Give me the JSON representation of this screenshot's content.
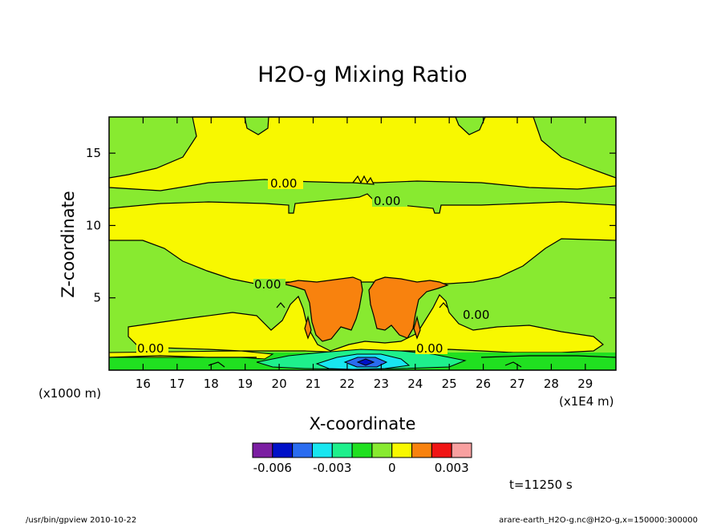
{
  "chart_data": {
    "type": "heatmap",
    "title": "H2O-g Mixing Ratio",
    "xlabel": "X-coordinate",
    "ylabel": "Z-coordinate",
    "x_unit_label": "(x1E4 m)",
    "y_unit_label": "(x1000 m)",
    "x_ticks": [
      "16",
      "17",
      "18",
      "19",
      "20",
      "21",
      "22",
      "23",
      "24",
      "25",
      "26",
      "27",
      "28",
      "29"
    ],
    "y_ticks": [
      "15",
      "10",
      "5"
    ],
    "xlim": [
      15.0,
      29.9
    ],
    "ylim": [
      0.0,
      17.5
    ],
    "contour_labels": [
      "0.00",
      "0.00",
      "0.00",
      "0.00",
      "0.00",
      "0.00"
    ],
    "colorbar": {
      "colors": [
        "#7b1ea2",
        "#0010c8",
        "#2a6cf0",
        "#18e6f0",
        "#1ef08c",
        "#20e020",
        "#88ea30",
        "#f8f800",
        "#f8820e",
        "#f01414",
        "#f8a0a0"
      ],
      "tick_labels": [
        "-0.006",
        "-0.003",
        "0",
        "0.003"
      ]
    },
    "time_label": "t=11250 s"
  },
  "footer": {
    "left": "/usr/bin/gpview   2010-10-22",
    "right": "arare-earth_H2O-g.nc@H2O-g,x=150000:300000"
  }
}
